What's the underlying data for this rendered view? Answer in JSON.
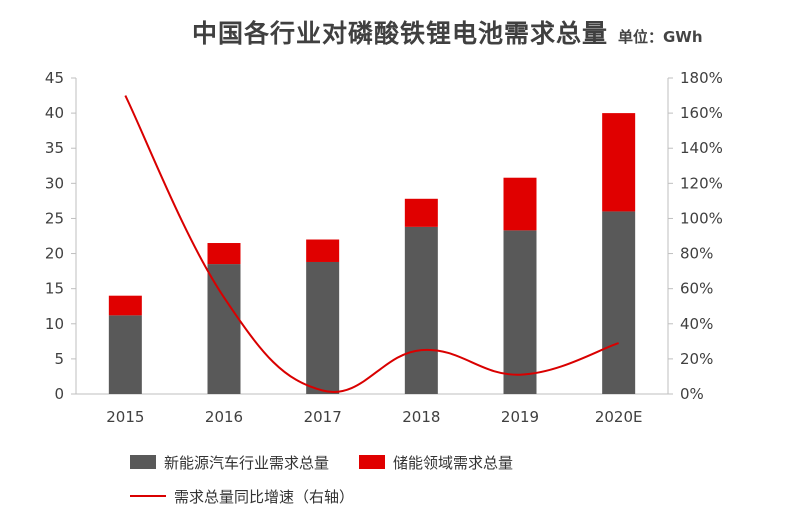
{
  "chart_data": {
    "type": "bar",
    "title": "中国各行业对磷酸铁锂电池需求总量",
    "unit": "单位：GWh",
    "categories": [
      "2015",
      "2016",
      "2017",
      "2018",
      "2019",
      "2020E"
    ],
    "series": [
      {
        "name": "新能源汽车行业需求总量",
        "kind": "bar",
        "stack": "total",
        "axis": "left",
        "color": "#595959",
        "values": [
          11.2,
          18.5,
          18.8,
          23.8,
          23.3,
          26.0
        ]
      },
      {
        "name": "储能领域需求总量",
        "kind": "bar",
        "stack": "total",
        "axis": "left",
        "color": "#e00000",
        "values": [
          2.8,
          3.0,
          3.2,
          4.0,
          7.5,
          14.0
        ]
      },
      {
        "name": "需求总量同比增速（右轴）",
        "kind": "line",
        "axis": "right",
        "color": "#d90000",
        "values": [
          1.7,
          0.55,
          0.02,
          0.25,
          0.11,
          0.29
        ]
      }
    ],
    "yleft": {
      "min": 0,
      "max": 45,
      "ticks": [
        0,
        5,
        10,
        15,
        20,
        25,
        30,
        35,
        40,
        45
      ],
      "tick_labels": [
        "0",
        "5",
        "10",
        "15",
        "20",
        "25",
        "30",
        "35",
        "40",
        "45"
      ]
    },
    "yright": {
      "min": 0,
      "max": 1.8,
      "ticks": [
        0,
        0.2,
        0.4,
        0.6,
        0.8,
        1.0,
        1.2,
        1.4,
        1.6,
        1.8
      ],
      "tick_labels": [
        "0%",
        "20%",
        "40%",
        "60%",
        "80%",
        "100%",
        "120%",
        "140%",
        "160%",
        "180%"
      ]
    },
    "grid": false,
    "legend_position": "bottom"
  }
}
